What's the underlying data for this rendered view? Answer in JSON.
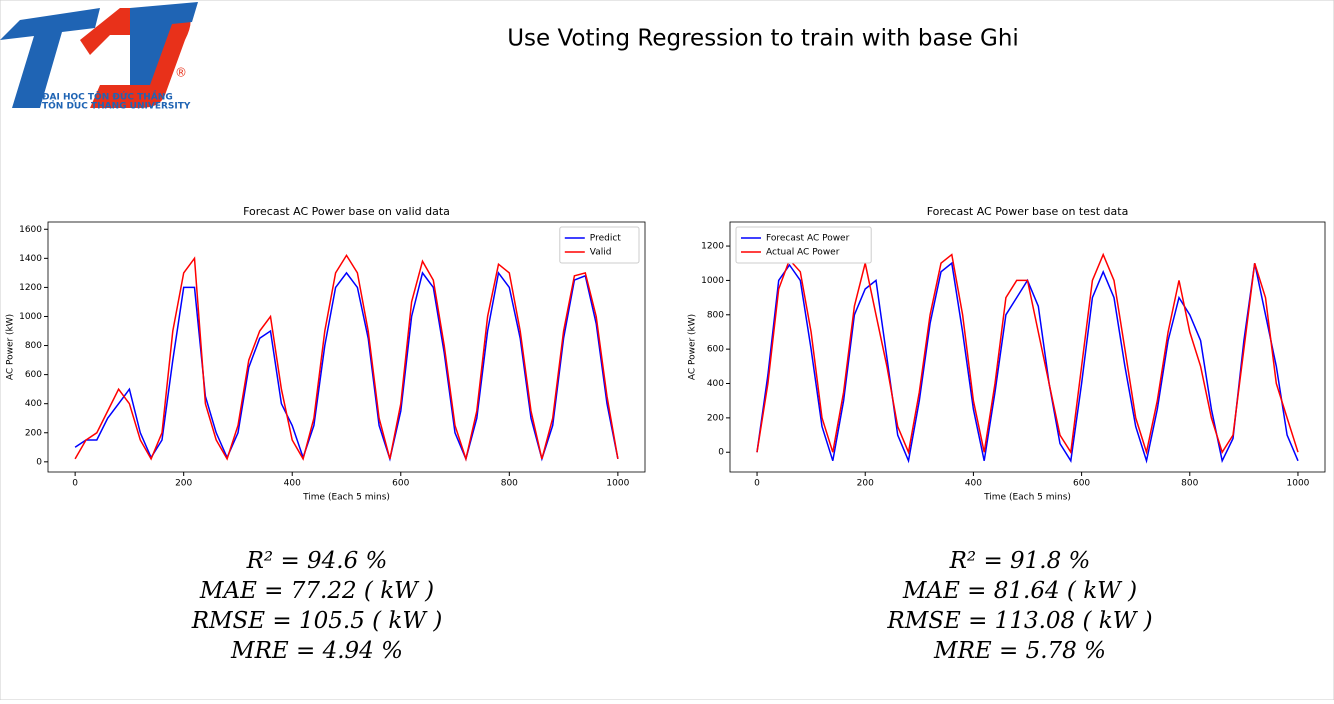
{
  "title": "Use Voting Regression to train with base Ghi",
  "logo": {
    "mark": "TDT",
    "registered": "®",
    "line1": "ĐẠI HỌC TÔN ĐỨC THẮNG",
    "line2": "TON DUC THANG UNIVERSITY"
  },
  "metrics": [
    [
      "R² = 94.6 %",
      "MAE  = 77.22 ( kW )",
      "RMSE  = 105.5 ( kW )",
      "MRE  = 4.94 %"
    ],
    [
      "R² = 91.8 %",
      "MAE  = 81.64 ( kW )",
      "RMSE  = 113.08 ( kW )",
      "MRE  = 5.78 %"
    ]
  ],
  "chart_data": [
    {
      "type": "line",
      "title": "Forecast AC Power base on valid data",
      "xlabel": "Time (Each 5 mins)",
      "ylabel": "AC Power (kW)",
      "legend": "upper right",
      "xlim": [
        -50,
        1050
      ],
      "ylim": [
        -70,
        1650
      ],
      "xticks": [
        0,
        200,
        400,
        600,
        800,
        1000
      ],
      "yticks": [
        0,
        200,
        400,
        600,
        800,
        1000,
        1200,
        1400,
        1600
      ],
      "x": [
        0,
        20,
        40,
        60,
        80,
        100,
        120,
        140,
        160,
        180,
        200,
        220,
        240,
        260,
        280,
        300,
        320,
        340,
        360,
        380,
        400,
        420,
        440,
        460,
        480,
        500,
        520,
        540,
        560,
        580,
        600,
        620,
        640,
        660,
        680,
        700,
        720,
        740,
        760,
        780,
        800,
        820,
        840,
        860,
        880,
        900,
        920,
        940,
        960,
        980,
        1000
      ],
      "series": [
        {
          "name": "Predict",
          "color": "#0000ff",
          "values": [
            100,
            150,
            150,
            300,
            400,
            500,
            200,
            30,
            150,
            700,
            1200,
            1200,
            450,
            200,
            30,
            200,
            650,
            850,
            900,
            400,
            250,
            30,
            250,
            800,
            1200,
            1300,
            1200,
            850,
            250,
            20,
            350,
            1000,
            1300,
            1200,
            750,
            200,
            20,
            300,
            900,
            1300,
            1200,
            850,
            300,
            20,
            250,
            850,
            1250,
            1280,
            950,
            400,
            20
          ]
        },
        {
          "name": "Valid",
          "color": "#ff0000",
          "values": [
            20,
            150,
            200,
            350,
            500,
            400,
            150,
            20,
            200,
            900,
            1300,
            1400,
            400,
            150,
            20,
            250,
            700,
            900,
            1000,
            500,
            150,
            20,
            300,
            900,
            1300,
            1420,
            1300,
            900,
            300,
            20,
            400,
            1100,
            1380,
            1250,
            800,
            250,
            20,
            350,
            1000,
            1360,
            1300,
            900,
            350,
            20,
            300,
            900,
            1280,
            1300,
            1000,
            450,
            20
          ]
        }
      ]
    },
    {
      "type": "line",
      "title": "Forecast AC Power base on test data",
      "xlabel": "Time (Each 5 mins)",
      "ylabel": "AC Power (kW)",
      "legend": "upper left",
      "xlim": [
        -50,
        1050
      ],
      "ylim": [
        -115,
        1340
      ],
      "xticks": [
        0,
        200,
        400,
        600,
        800,
        1000
      ],
      "yticks": [
        0,
        200,
        400,
        600,
        800,
        1000,
        1200
      ],
      "x": [
        0,
        20,
        40,
        60,
        80,
        100,
        120,
        140,
        160,
        180,
        200,
        220,
        240,
        260,
        280,
        300,
        320,
        340,
        360,
        380,
        400,
        420,
        440,
        460,
        480,
        500,
        520,
        540,
        560,
        580,
        600,
        620,
        640,
        660,
        680,
        700,
        720,
        740,
        760,
        780,
        800,
        820,
        840,
        860,
        880,
        900,
        920,
        940,
        960,
        980,
        1000
      ],
      "series": [
        {
          "name": "Forecast AC Power",
          "color": "#0000ff",
          "values": [
            0,
            450,
            1000,
            1090,
            1000,
            600,
            150,
            -50,
            300,
            800,
            950,
            1000,
            550,
            100,
            -50,
            300,
            750,
            1050,
            1100,
            700,
            250,
            -50,
            350,
            800,
            900,
            1000,
            850,
            400,
            50,
            -50,
            400,
            900,
            1050,
            900,
            500,
            150,
            -50,
            250,
            650,
            900,
            800,
            650,
            250,
            -50,
            80,
            650,
            1100,
            800,
            500,
            100,
            -50
          ]
        },
        {
          "name": "Actual AC Power",
          "color": "#ff0000",
          "values": [
            0,
            400,
            950,
            1120,
            1050,
            700,
            200,
            0,
            350,
            850,
            1100,
            800,
            500,
            150,
            0,
            350,
            800,
            1100,
            1150,
            800,
            300,
            0,
            400,
            900,
            1000,
            1000,
            700,
            400,
            100,
            0,
            500,
            1000,
            1150,
            1000,
            600,
            200,
            0,
            300,
            700,
            1000,
            700,
            500,
            200,
            0,
            100,
            600,
            1100,
            900,
            400,
            200,
            0
          ]
        }
      ]
    }
  ]
}
